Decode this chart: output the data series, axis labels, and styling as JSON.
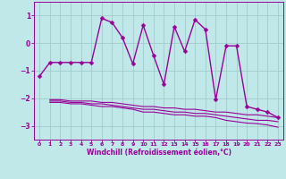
{
  "title": "",
  "xlabel": "Windchill (Refroidissement éolien,°C)",
  "ylabel": "",
  "background_color": "#c0e8e8",
  "line_color": "#990099",
  "grid_color": "#a0cccc",
  "xlim": [
    -0.5,
    23.5
  ],
  "ylim": [
    -3.5,
    1.5
  ],
  "yticks": [
    1,
    0,
    -1,
    -2,
    -3
  ],
  "xticks": [
    0,
    1,
    2,
    3,
    4,
    5,
    6,
    7,
    8,
    9,
    10,
    11,
    12,
    13,
    14,
    15,
    16,
    17,
    18,
    19,
    20,
    21,
    22,
    23
  ],
  "series": [
    {
      "x": [
        0,
        1,
        2,
        3,
        4,
        5,
        6,
        7,
        8,
        9,
        10,
        11,
        12,
        13,
        14,
        15,
        16,
        17,
        18,
        19,
        20,
        21,
        22,
        23
      ],
      "y": [
        -1.2,
        -0.7,
        -0.7,
        -0.7,
        -0.7,
        -0.7,
        0.9,
        0.75,
        0.2,
        -0.75,
        0.65,
        -0.45,
        -1.5,
        0.6,
        -0.3,
        0.85,
        0.5,
        -2.05,
        -0.1,
        -0.1,
        -2.3,
        -2.4,
        -2.5,
        -2.7
      ],
      "marker": "D",
      "markersize": 2.5,
      "linewidth": 1.0,
      "has_marker": true
    },
    {
      "x": [
        1,
        2,
        3,
        4,
        5,
        6,
        7,
        8,
        9,
        10,
        11,
        12,
        13,
        14,
        15,
        16,
        17,
        18,
        19,
        20,
        21,
        22,
        23
      ],
      "y": [
        -2.05,
        -2.05,
        -2.1,
        -2.1,
        -2.1,
        -2.15,
        -2.15,
        -2.2,
        -2.25,
        -2.3,
        -2.3,
        -2.35,
        -2.35,
        -2.4,
        -2.4,
        -2.45,
        -2.5,
        -2.5,
        -2.55,
        -2.6,
        -2.6,
        -2.65,
        -2.7
      ],
      "marker": null,
      "markersize": 0,
      "linewidth": 0.8,
      "has_marker": false
    },
    {
      "x": [
        1,
        2,
        3,
        4,
        5,
        6,
        7,
        8,
        9,
        10,
        11,
        12,
        13,
        14,
        15,
        16,
        17,
        18,
        19,
        20,
        21,
        22,
        23
      ],
      "y": [
        -2.1,
        -2.1,
        -2.15,
        -2.15,
        -2.2,
        -2.2,
        -2.25,
        -2.3,
        -2.35,
        -2.4,
        -2.4,
        -2.45,
        -2.5,
        -2.5,
        -2.55,
        -2.55,
        -2.6,
        -2.65,
        -2.7,
        -2.75,
        -2.8,
        -2.8,
        -2.85
      ],
      "marker": null,
      "markersize": 0,
      "linewidth": 0.8,
      "has_marker": false
    },
    {
      "x": [
        1,
        2,
        3,
        4,
        5,
        6,
        7,
        8,
        9,
        10,
        11,
        12,
        13,
        14,
        15,
        16,
        17,
        18,
        19,
        20,
        21,
        22,
        23
      ],
      "y": [
        -2.15,
        -2.15,
        -2.2,
        -2.2,
        -2.25,
        -2.3,
        -2.3,
        -2.35,
        -2.4,
        -2.5,
        -2.5,
        -2.55,
        -2.6,
        -2.6,
        -2.65,
        -2.65,
        -2.7,
        -2.8,
        -2.85,
        -2.9,
        -2.92,
        -2.97,
        -3.05
      ],
      "marker": null,
      "markersize": 0,
      "linewidth": 0.8,
      "has_marker": false
    }
  ]
}
